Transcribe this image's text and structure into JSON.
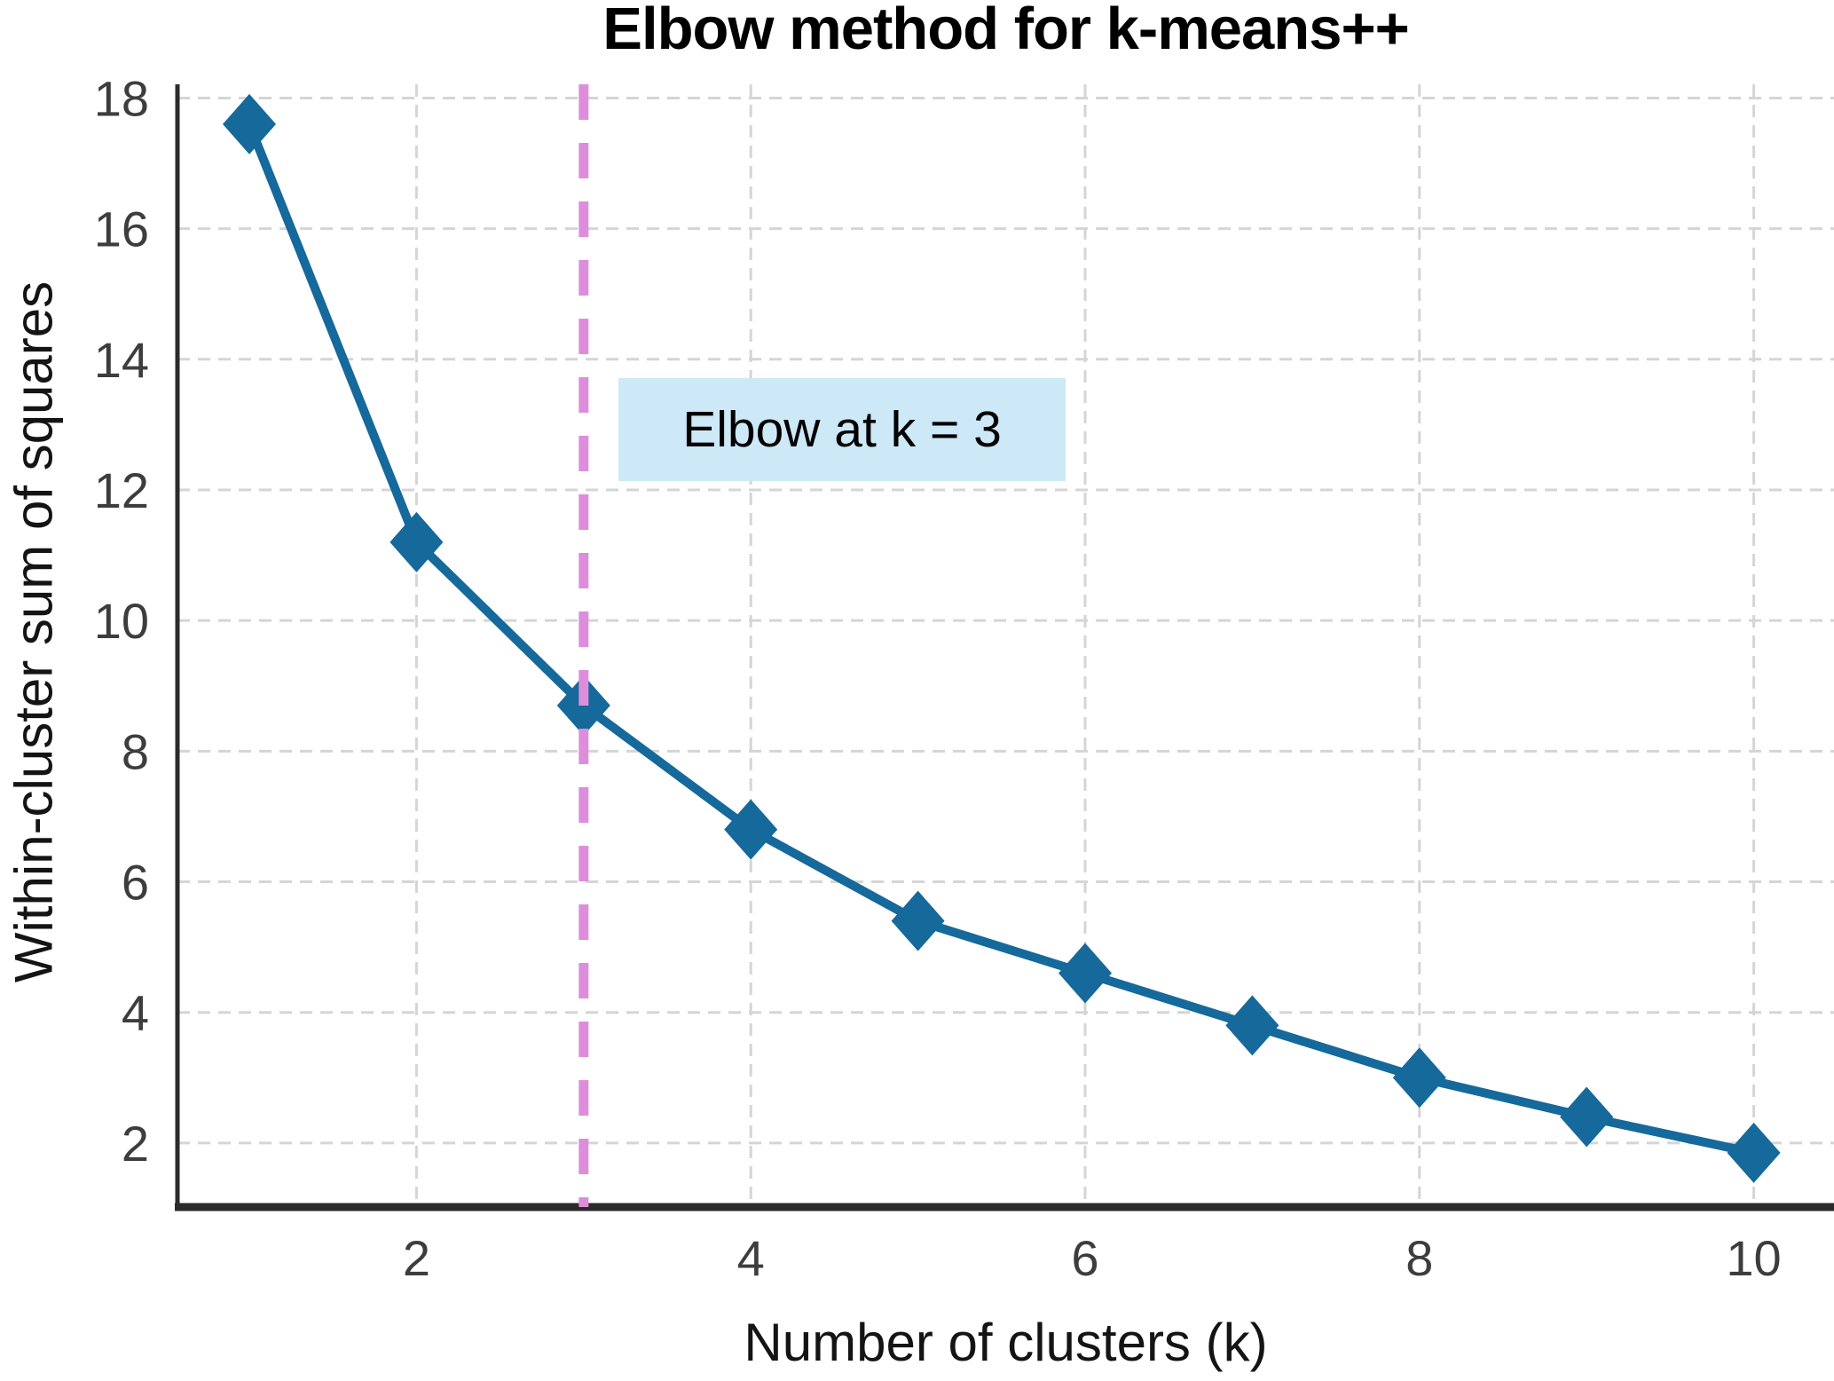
{
  "figure": {
    "title": "Elbow method for k-means++"
  },
  "chart_data": {
    "type": "line",
    "title": "Elbow method for k-means++",
    "xlabel": "Number of clusters (k)",
    "ylabel": "Within-cluster sum of squares",
    "series": [
      {
        "name": "Within-cluster sum of squares",
        "marker": "diamond",
        "x": [
          1,
          2,
          3,
          4,
          5,
          6,
          7,
          8,
          9,
          10
        ],
        "y": [
          17.6,
          11.2,
          8.7,
          6.8,
          5.4,
          4.6,
          3.8,
          3.0,
          2.4,
          1.85
        ]
      }
    ],
    "xlim": [
      0.57,
      10.48
    ],
    "ylim": [
      1.02,
      18.21
    ],
    "xticks": [
      2,
      4,
      6,
      8,
      10
    ],
    "yticks": [
      2,
      4,
      6,
      8,
      10,
      12,
      14,
      16,
      18
    ],
    "grid": true,
    "legend": "none",
    "vline": {
      "x": 3,
      "style": "dashed",
      "label": "Elbow at k = 3"
    },
    "colors": {
      "line": "#15699b",
      "marker": "#15699b",
      "vline": "#dd8edb",
      "grid": "#d5d5d5",
      "spine": "#2b2b2b",
      "tick_label": "#3d3d3d",
      "annotation_bg": "#cde9f7",
      "annotation_text": "#000000"
    }
  }
}
